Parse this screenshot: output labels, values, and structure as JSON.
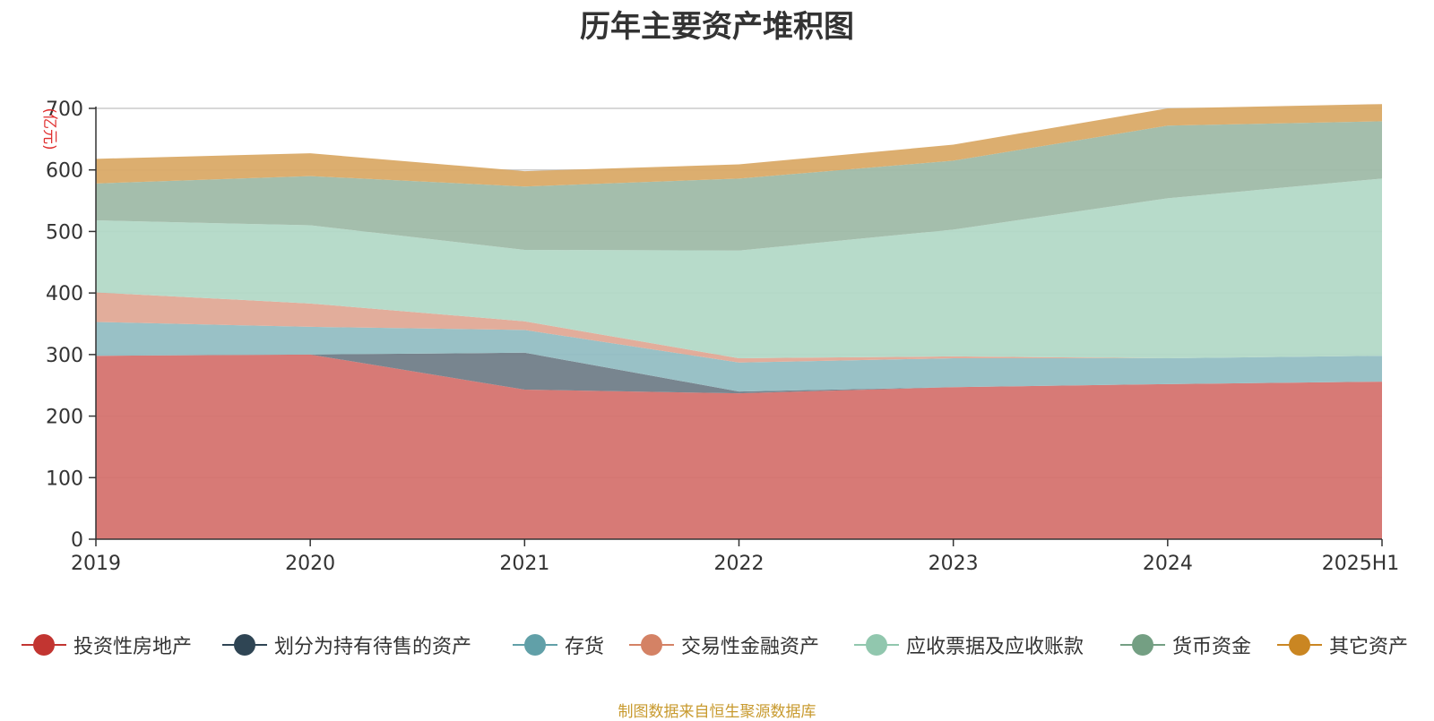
{
  "title": "历年主要资产堆积图",
  "source_note": "制图数据来自恒生聚源数据库",
  "chart_data": {
    "type": "area",
    "stacked": true,
    "title": "历年主要资产堆积图",
    "ylabel": "(亿元)",
    "xlabel": "",
    "ylim": [
      0,
      700
    ],
    "yticks": [
      0,
      100,
      200,
      300,
      400,
      500,
      600,
      700
    ],
    "categories": [
      "2019",
      "2020",
      "2021",
      "2022",
      "2023",
      "2024",
      "2025H1"
    ],
    "series": [
      {
        "name": "投资性房地产",
        "color": "#c23531",
        "fill": "#d4706c",
        "values": [
          298,
          300,
          243,
          237,
          247,
          252,
          256
        ]
      },
      {
        "name": "划分为持有待售的资产",
        "color": "#2f4554",
        "fill": "#6e7c87",
        "values": [
          0,
          0,
          60,
          3,
          0,
          0,
          0
        ]
      },
      {
        "name": "存货",
        "color": "#61a0a8",
        "fill": "#91bcc2",
        "values": [
          55,
          45,
          37,
          47,
          47,
          42,
          42
        ]
      },
      {
        "name": "交易性金融资产",
        "color": "#d48265",
        "fill": "#e0a793",
        "values": [
          48,
          38,
          14,
          7,
          3,
          0,
          0
        ]
      },
      {
        "name": "应收票据及应收账款",
        "color": "#91c7ae",
        "fill": "#b2d8c6",
        "values": [
          117,
          127,
          116,
          175,
          206,
          260,
          288
        ]
      },
      {
        "name": "货币资金",
        "color": "#749f83",
        "fill": "#9db9a6",
        "values": [
          60,
          80,
          103,
          117,
          112,
          118,
          93
        ]
      },
      {
        "name": "其它资产",
        "color": "#ca8622",
        "fill": "#d9a864",
        "values": [
          40,
          37,
          25,
          23,
          26,
          28,
          28
        ]
      }
    ],
    "grid": true,
    "legend_position": "bottom"
  }
}
